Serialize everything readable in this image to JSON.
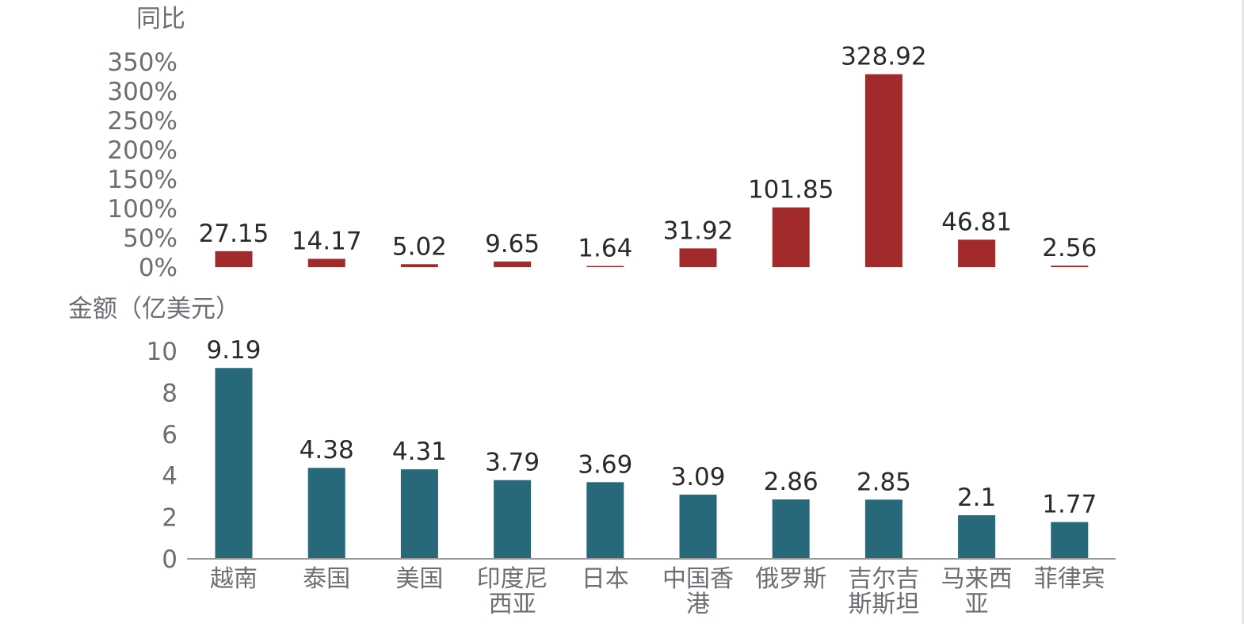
{
  "chart_data": [
    {
      "type": "bar",
      "title": "",
      "ylabel": "同比",
      "y_tick_labels": [
        "350%",
        "300%",
        "250%",
        "200%",
        "150%",
        "100%",
        "50%",
        "0%"
      ],
      "ylim": [
        0,
        350
      ],
      "categories": [
        "越南",
        "泰国",
        "美国",
        "印度尼西亚",
        "日本",
        "中国香港",
        "俄罗斯",
        "吉尔吉斯斯坦",
        "马来西亚",
        "菲律宾"
      ],
      "series": [
        {
          "values": [
            27.15,
            14.17,
            5.02,
            9.65,
            1.64,
            31.92,
            101.85,
            328.92,
            46.81,
            2.56
          ],
          "color": "#a32a2a"
        }
      ],
      "data_labels": [
        "27.15",
        "14.17",
        "5.02",
        "9.65",
        "1.64",
        "31.92",
        "101.85",
        "328.92",
        "46.81",
        "2.56"
      ],
      "grid": false,
      "legend": "none"
    },
    {
      "type": "bar",
      "title": "",
      "ylabel": "金额（亿美元）",
      "y_tick_labels": [
        "10",
        "8",
        "6",
        "4",
        "2",
        "0"
      ],
      "ylim": [
        0,
        10
      ],
      "categories": [
        "越南",
        "泰国",
        "美国",
        "印度尼西亚",
        "日本",
        "中国香港",
        "俄罗斯",
        "吉尔吉斯斯坦",
        "马来西亚",
        "菲律宾"
      ],
      "category_label_lines": [
        [
          "越南"
        ],
        [
          "泰国"
        ],
        [
          "美国"
        ],
        [
          "印度尼",
          "西亚"
        ],
        [
          "日本"
        ],
        [
          "中国香",
          "港"
        ],
        [
          "俄罗斯"
        ],
        [
          "吉尔吉",
          "斯斯坦"
        ],
        [
          "马来西",
          "亚"
        ],
        [
          "菲律宾"
        ]
      ],
      "series": [
        {
          "values": [
            9.19,
            4.38,
            4.31,
            3.79,
            3.69,
            3.09,
            2.86,
            2.85,
            2.1,
            1.77
          ],
          "color": "#27687a"
        }
      ],
      "data_labels": [
        "9.19",
        "4.38",
        "4.31",
        "3.79",
        "3.69",
        "3.09",
        "2.86",
        "2.85",
        "2.1",
        "1.77"
      ],
      "grid": false,
      "legend": "none"
    }
  ]
}
